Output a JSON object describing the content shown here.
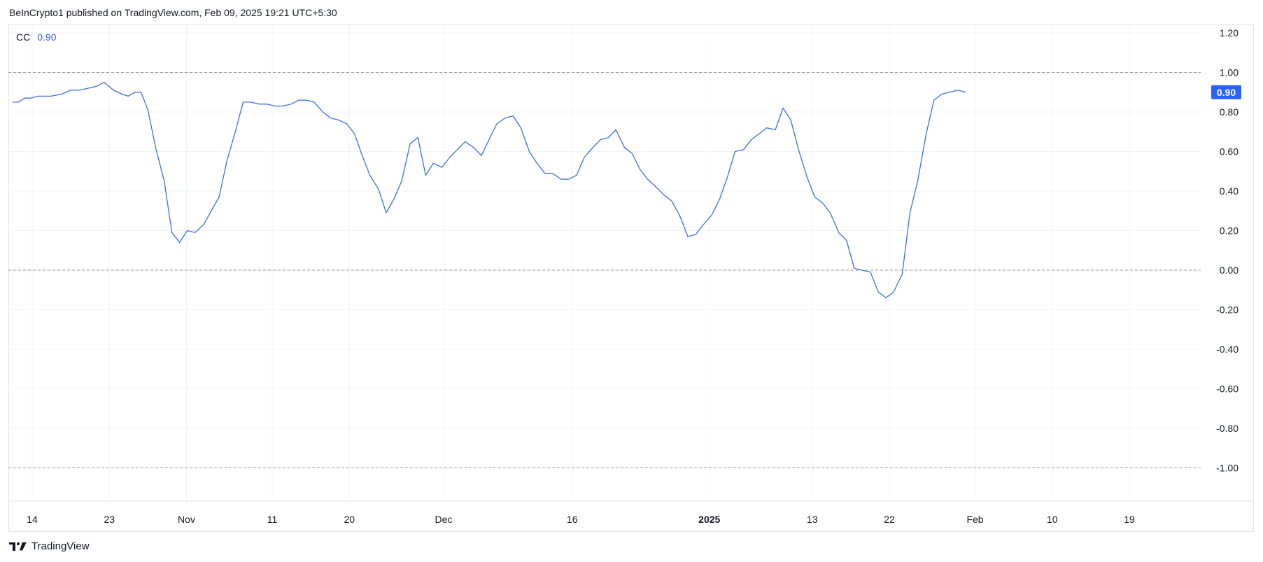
{
  "header": {
    "published": "BeInCrypto1 published on TradingView.com, Feb 09, 2025 19:21 UTC+5:30"
  },
  "legend": {
    "indicator": "CC",
    "value": "0.90"
  },
  "footer": {
    "brand": "TradingView"
  },
  "colors": {
    "line": "#3a6fd8",
    "accent": "#2962ff",
    "grid": "#f0f3fa",
    "refline": "#9598a1",
    "axis_text": "#131722"
  },
  "chart_data": {
    "type": "line",
    "ylim": [
      -1.2,
      1.2
    ],
    "y_ticks": [
      "1.20",
      "1.00",
      "0.80",
      "0.60",
      "0.40",
      "0.20",
      "0.00",
      "-0.20",
      "-0.40",
      "-0.60",
      "-0.80",
      "-1.00"
    ],
    "y_tick_values": [
      1.2,
      1.0,
      0.8,
      0.6,
      0.4,
      0.2,
      0.0,
      -0.2,
      -0.4,
      -0.6,
      -0.8,
      -1.0
    ],
    "reference_lines": [
      1.0,
      0.0,
      -1.0
    ],
    "x_ticks": [
      {
        "label": "14",
        "day": 0,
        "bold": false
      },
      {
        "label": "23",
        "day": 9,
        "bold": false
      },
      {
        "label": "Nov",
        "day": 18,
        "bold": false
      },
      {
        "label": "11",
        "day": 28,
        "bold": false
      },
      {
        "label": "20",
        "day": 37,
        "bold": false
      },
      {
        "label": "Dec",
        "day": 48,
        "bold": false
      },
      {
        "label": "16",
        "day": 63,
        "bold": false
      },
      {
        "label": "2025",
        "day": 79,
        "bold": true
      },
      {
        "label": "13",
        "day": 91,
        "bold": false
      },
      {
        "label": "22",
        "day": 100,
        "bold": false
      },
      {
        "label": "Feb",
        "day": 110,
        "bold": false
      },
      {
        "label": "10",
        "day": 119,
        "bold": false
      },
      {
        "label": "19",
        "day": 128,
        "bold": false
      }
    ],
    "last_value_label": "0.90",
    "series": [
      {
        "points": [
          [
            -2.3,
            0.85
          ],
          [
            -1.6,
            0.85
          ],
          [
            -0.9,
            0.87
          ],
          [
            -0.2,
            0.87
          ],
          [
            0.7,
            0.88
          ],
          [
            1.5,
            0.88
          ],
          [
            2.2,
            0.88
          ],
          [
            3.4,
            0.89
          ],
          [
            4.5,
            0.91
          ],
          [
            5.5,
            0.91
          ],
          [
            6.5,
            0.92
          ],
          [
            7.5,
            0.93
          ],
          [
            8.4,
            0.95
          ],
          [
            9.5,
            0.91
          ],
          [
            10.5,
            0.89
          ],
          [
            11.2,
            0.88
          ],
          [
            12.0,
            0.9
          ],
          [
            12.7,
            0.9
          ],
          [
            13.5,
            0.81
          ],
          [
            14.4,
            0.62
          ],
          [
            15.4,
            0.45
          ],
          [
            16.3,
            0.19
          ],
          [
            17.2,
            0.14
          ],
          [
            18.1,
            0.2
          ],
          [
            19.0,
            0.19
          ],
          [
            20.0,
            0.23
          ],
          [
            20.9,
            0.3
          ],
          [
            21.8,
            0.37
          ],
          [
            22.7,
            0.55
          ],
          [
            23.7,
            0.7
          ],
          [
            24.6,
            0.85
          ],
          [
            25.5,
            0.85
          ],
          [
            26.5,
            0.84
          ],
          [
            27.4,
            0.84
          ],
          [
            28.3,
            0.83
          ],
          [
            29.2,
            0.83
          ],
          [
            30.2,
            0.84
          ],
          [
            31.1,
            0.86
          ],
          [
            32.0,
            0.86
          ],
          [
            32.9,
            0.85
          ],
          [
            33.9,
            0.8
          ],
          [
            34.8,
            0.77
          ],
          [
            35.7,
            0.76
          ],
          [
            36.7,
            0.74
          ],
          [
            37.6,
            0.69
          ],
          [
            38.5,
            0.58
          ],
          [
            39.4,
            0.48
          ],
          [
            40.4,
            0.41
          ],
          [
            41.3,
            0.29
          ],
          [
            42.2,
            0.36
          ],
          [
            43.1,
            0.45
          ],
          [
            44.1,
            0.64
          ],
          [
            45.0,
            0.67
          ],
          [
            45.9,
            0.48
          ],
          [
            46.8,
            0.54
          ],
          [
            47.8,
            0.52
          ],
          [
            48.7,
            0.57
          ],
          [
            49.6,
            0.61
          ],
          [
            50.5,
            0.65
          ],
          [
            51.5,
            0.62
          ],
          [
            52.4,
            0.58
          ],
          [
            53.3,
            0.66
          ],
          [
            54.2,
            0.74
          ],
          [
            55.2,
            0.77
          ],
          [
            56.1,
            0.78
          ],
          [
            57.0,
            0.72
          ],
          [
            58.0,
            0.6
          ],
          [
            58.9,
            0.54
          ],
          [
            59.8,
            0.49
          ],
          [
            60.7,
            0.49
          ],
          [
            61.7,
            0.46
          ],
          [
            62.6,
            0.46
          ],
          [
            63.5,
            0.48
          ],
          [
            64.4,
            0.57
          ],
          [
            65.4,
            0.62
          ],
          [
            66.3,
            0.66
          ],
          [
            67.2,
            0.67
          ],
          [
            68.1,
            0.71
          ],
          [
            69.1,
            0.62
          ],
          [
            70.0,
            0.59
          ],
          [
            70.9,
            0.51
          ],
          [
            71.8,
            0.46
          ],
          [
            72.8,
            0.42
          ],
          [
            73.7,
            0.38
          ],
          [
            74.6,
            0.35
          ],
          [
            75.5,
            0.28
          ],
          [
            76.5,
            0.17
          ],
          [
            77.4,
            0.18
          ],
          [
            78.3,
            0.23
          ],
          [
            79.3,
            0.28
          ],
          [
            80.2,
            0.36
          ],
          [
            81.1,
            0.47
          ],
          [
            82.0,
            0.6
          ],
          [
            83.0,
            0.61
          ],
          [
            83.9,
            0.66
          ],
          [
            84.8,
            0.69
          ],
          [
            85.7,
            0.72
          ],
          [
            86.7,
            0.71
          ],
          [
            87.6,
            0.82
          ],
          [
            88.5,
            0.76
          ],
          [
            89.4,
            0.61
          ],
          [
            90.4,
            0.47
          ],
          [
            91.3,
            0.37
          ],
          [
            92.2,
            0.34
          ],
          [
            93.1,
            0.29
          ],
          [
            94.1,
            0.19
          ],
          [
            95.0,
            0.15
          ],
          [
            95.9,
            0.01
          ],
          [
            96.8,
            0.0
          ],
          [
            97.8,
            -0.01
          ],
          [
            98.7,
            -0.11
          ],
          [
            99.6,
            -0.14
          ],
          [
            100.5,
            -0.11
          ],
          [
            101.5,
            -0.02
          ],
          [
            102.4,
            0.29
          ],
          [
            103.3,
            0.45
          ],
          [
            104.3,
            0.69
          ],
          [
            105.2,
            0.86
          ],
          [
            106.1,
            0.89
          ],
          [
            107.0,
            0.9
          ],
          [
            108.0,
            0.91
          ],
          [
            108.9,
            0.9
          ]
        ]
      }
    ]
  }
}
